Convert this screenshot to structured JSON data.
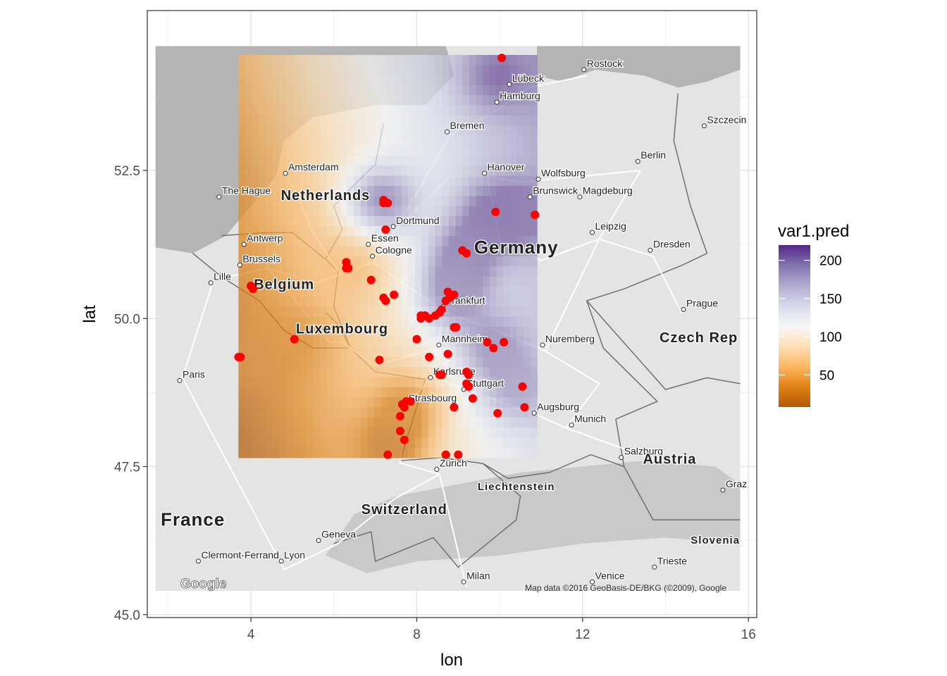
{
  "chart_data": {
    "type": "map",
    "xlabel": "lon",
    "ylabel": "lat",
    "xlim": [
      1.5,
      16.2
    ],
    "ylim": [
      44.95,
      55.2
    ],
    "x_ticks": [
      4,
      8,
      12,
      16
    ],
    "y_ticks": [
      45.0,
      47.5,
      50.0,
      52.5
    ],
    "x_tick_labels": [
      "4",
      "8",
      "12",
      "16"
    ],
    "y_tick_labels": [
      "45.0",
      "47.5",
      "50.0",
      "52.5"
    ],
    "grid": true,
    "basemap": {
      "extent": {
        "lon": [
          1.7,
          15.8
        ],
        "lat": [
          45.4,
          54.6
        ]
      },
      "land_color": "#e4e4e4",
      "sea_color": "#b4b4b4",
      "attribution": "Map data ©2016 GeoBasis-DE/BKG (©2009), Google",
      "logo": "Google",
      "country_labels": [
        {
          "text": "Netherlands",
          "lon": 5.8,
          "lat": 52.0
        },
        {
          "text": "Germany",
          "lon": 10.4,
          "lat": 51.1
        },
        {
          "text": "Belgium",
          "lon": 4.8,
          "lat": 50.5
        },
        {
          "text": "Luxembourg",
          "lon": 6.2,
          "lat": 49.75
        },
        {
          "text": "Czech Rep",
          "lon": 14.8,
          "lat": 49.6
        },
        {
          "text": "Austria",
          "lon": 14.1,
          "lat": 47.55
        },
        {
          "text": "Liechtenstein",
          "lon": 10.4,
          "lat": 47.1
        },
        {
          "text": "Switzerland",
          "lon": 7.7,
          "lat": 46.7
        },
        {
          "text": "France",
          "lon": 2.6,
          "lat": 46.5
        },
        {
          "text": "Slovenia",
          "lon": 15.2,
          "lat": 46.2
        }
      ],
      "city_labels": [
        {
          "text": "Rostock",
          "lon": 12.1,
          "lat": 54.25
        },
        {
          "text": "Lübeck",
          "lon": 10.3,
          "lat": 54.0
        },
        {
          "text": "Hamburg",
          "lon": 10.0,
          "lat": 53.7
        },
        {
          "text": "Szczecin",
          "lon": 15.0,
          "lat": 53.3
        },
        {
          "text": "Bremen",
          "lon": 8.8,
          "lat": 53.2
        },
        {
          "text": "Berlin",
          "lon": 13.4,
          "lat": 52.7
        },
        {
          "text": "Amsterdam",
          "lon": 4.9,
          "lat": 52.5
        },
        {
          "text": "Hanover",
          "lon": 9.7,
          "lat": 52.5
        },
        {
          "text": "Wolfsburg",
          "lon": 11.0,
          "lat": 52.4
        },
        {
          "text": "The Hague",
          "lon": 3.3,
          "lat": 52.1
        },
        {
          "text": "Brunswick",
          "lon": 10.8,
          "lat": 52.1
        },
        {
          "text": "Magdeburg",
          "lon": 12.0,
          "lat": 52.1
        },
        {
          "text": "Dortmund",
          "lon": 7.5,
          "lat": 51.6
        },
        {
          "text": "Leipzig",
          "lon": 12.3,
          "lat": 51.5
        },
        {
          "text": "Antwerp",
          "lon": 3.9,
          "lat": 51.3
        },
        {
          "text": "Essen",
          "lon": 6.9,
          "lat": 51.3
        },
        {
          "text": "Cologne",
          "lon": 7.0,
          "lat": 51.1
        },
        {
          "text": "Dresden",
          "lon": 13.7,
          "lat": 51.2
        },
        {
          "text": "Brussels",
          "lon": 3.8,
          "lat": 50.95
        },
        {
          "text": "Lille",
          "lon": 3.1,
          "lat": 50.65
        },
        {
          "text": "Frankfurt",
          "lon": 8.7,
          "lat": 50.25
        },
        {
          "text": "Prague",
          "lon": 14.5,
          "lat": 50.2
        },
        {
          "text": "Mannheim",
          "lon": 8.6,
          "lat": 49.6
        },
        {
          "text": "Nuremberg",
          "lon": 11.1,
          "lat": 49.6
        },
        {
          "text": "Paris",
          "lon": 2.35,
          "lat": 49.0
        },
        {
          "text": "Karlsruhe",
          "lon": 8.4,
          "lat": 49.05
        },
        {
          "text": "Stuttgart",
          "lon": 9.2,
          "lat": 48.85
        },
        {
          "text": "Strasbourg",
          "lon": 7.8,
          "lat": 48.6
        },
        {
          "text": "Augsburg",
          "lon": 10.9,
          "lat": 48.45
        },
        {
          "text": "Munich",
          "lon": 11.8,
          "lat": 48.25
        },
        {
          "text": "Salzburg",
          "lon": 13.0,
          "lat": 47.7
        },
        {
          "text": "Zürich",
          "lon": 8.55,
          "lat": 47.5
        },
        {
          "text": "Graz",
          "lon": 15.45,
          "lat": 47.15
        },
        {
          "text": "Geneva",
          "lon": 5.7,
          "lat": 46.3
        },
        {
          "text": "Clermont-Ferrand",
          "lon": 2.8,
          "lat": 45.95
        },
        {
          "text": "Lyon",
          "lon": 4.8,
          "lat": 45.95
        },
        {
          "text": "Trieste",
          "lon": 13.8,
          "lat": 45.85
        },
        {
          "text": "Milan",
          "lon": 9.2,
          "lat": 45.6
        },
        {
          "text": "Venice",
          "lon": 12.3,
          "lat": 45.6
        }
      ]
    },
    "raster": {
      "name": "var1.pred",
      "lon_range": [
        3.7,
        10.9
      ],
      "lat_range": [
        47.65,
        54.45
      ],
      "opacity": 0.7,
      "hotspots": [
        {
          "lon": 10.0,
          "lat": 54.1,
          "value": 210
        },
        {
          "lon": 9.9,
          "lat": 51.8,
          "value": 205
        },
        {
          "lon": 10.8,
          "lat": 51.75,
          "value": 200
        },
        {
          "lon": 9.2,
          "lat": 51.1,
          "value": 195
        },
        {
          "lon": 7.2,
          "lat": 52.0,
          "value": 190
        },
        {
          "lon": 8.9,
          "lat": 50.4,
          "value": 185
        },
        {
          "lon": 9.9,
          "lat": 49.55,
          "value": 185
        },
        {
          "lon": 10.5,
          "lat": 48.8,
          "value": 175
        },
        {
          "lon": 4.0,
          "lat": 49.3,
          "value": 25
        },
        {
          "lon": 5.0,
          "lat": 49.6,
          "value": 35
        },
        {
          "lon": 7.3,
          "lat": 47.8,
          "value": 20
        },
        {
          "lon": 7.7,
          "lat": 48.5,
          "value": 35
        },
        {
          "lon": 6.4,
          "lat": 50.9,
          "value": 60
        }
      ]
    },
    "legend": {
      "title": "var1.pred",
      "position": "right",
      "range": [
        8,
        220
      ],
      "breaks": [
        50,
        100,
        150,
        200
      ],
      "labels": [
        "50",
        "100",
        "150",
        "200"
      ],
      "colors": [
        "#b35806",
        "#e08214",
        "#fdb863",
        "#fee0b6",
        "#f7f7f7",
        "#d8daeb",
        "#b2abd2",
        "#8073ac",
        "#542788"
      ]
    },
    "points": {
      "color": "#ff0000",
      "coords": [
        [
          10.05,
          54.4
        ],
        [
          7.2,
          52.0
        ],
        [
          7.2,
          51.95
        ],
        [
          7.3,
          51.95
        ],
        [
          7.25,
          51.5
        ],
        [
          9.9,
          51.8
        ],
        [
          10.85,
          51.75
        ],
        [
          9.1,
          51.15
        ],
        [
          9.2,
          51.1
        ],
        [
          6.3,
          50.95
        ],
        [
          6.3,
          50.85
        ],
        [
          6.35,
          50.85
        ],
        [
          6.9,
          50.65
        ],
        [
          4.0,
          50.55
        ],
        [
          4.05,
          50.5
        ],
        [
          7.2,
          50.35
        ],
        [
          7.25,
          50.3
        ],
        [
          7.45,
          50.4
        ],
        [
          8.75,
          50.45
        ],
        [
          8.8,
          50.35
        ],
        [
          8.9,
          50.4
        ],
        [
          8.7,
          50.3
        ],
        [
          8.6,
          50.15
        ],
        [
          8.55,
          50.1
        ],
        [
          8.45,
          50.05
        ],
        [
          8.1,
          50.05
        ],
        [
          8.2,
          50.05
        ],
        [
          8.1,
          50.0
        ],
        [
          8.3,
          50.0
        ],
        [
          8.9,
          49.85
        ],
        [
          8.95,
          49.85
        ],
        [
          8.0,
          49.65
        ],
        [
          5.05,
          49.65
        ],
        [
          9.7,
          49.6
        ],
        [
          9.85,
          49.5
        ],
        [
          10.1,
          49.6
        ],
        [
          8.75,
          49.4
        ],
        [
          8.3,
          49.35
        ],
        [
          7.1,
          49.3
        ],
        [
          3.7,
          49.35
        ],
        [
          3.75,
          49.35
        ],
        [
          8.55,
          49.05
        ],
        [
          8.6,
          49.05
        ],
        [
          9.2,
          49.1
        ],
        [
          9.25,
          49.05
        ],
        [
          9.2,
          48.9
        ],
        [
          9.25,
          48.85
        ],
        [
          10.55,
          48.85
        ],
        [
          9.35,
          48.65
        ],
        [
          7.75,
          48.6
        ],
        [
          7.85,
          48.6
        ],
        [
          7.65,
          48.55
        ],
        [
          7.7,
          48.5
        ],
        [
          7.6,
          48.35
        ],
        [
          8.9,
          48.5
        ],
        [
          10.6,
          48.5
        ],
        [
          9.95,
          48.4
        ],
        [
          7.6,
          48.1
        ],
        [
          7.7,
          47.95
        ],
        [
          7.3,
          47.7
        ],
        [
          8.7,
          47.7
        ],
        [
          9.0,
          47.7
        ]
      ]
    }
  }
}
